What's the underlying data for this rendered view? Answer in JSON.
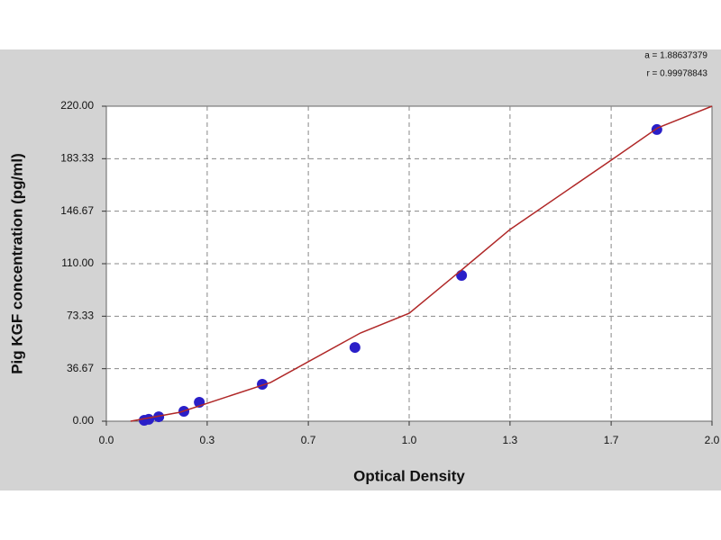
{
  "chart_data": {
    "type": "scatter",
    "x_label": "Optical Density",
    "y_label": "Pig KGF concentration (pg/ml)",
    "annotations": [
      "a = 1.88637379",
      "r = 0.99978843"
    ],
    "xlim": [
      0,
      2.0
    ],
    "xticks": [
      {
        "value": 0,
        "label": "0.0"
      },
      {
        "value": 0.333,
        "label": "0.3"
      },
      {
        "value": 0.667,
        "label": "0.7"
      },
      {
        "value": 1.0,
        "label": "1.0"
      },
      {
        "value": 1.333,
        "label": "1.3"
      },
      {
        "value": 1.667,
        "label": "1.7"
      },
      {
        "value": 2.0,
        "label": "2.0"
      }
    ],
    "ylim": [
      0,
      220
    ],
    "yticks": [
      {
        "value": 0,
        "label": "0.00"
      },
      36.67,
      73.33,
      {
        "value": 110,
        "label": "110.00"
      },
      146.67,
      183.33,
      {
        "value": 220,
        "label": "220.00"
      }
    ],
    "grid": true,
    "series": [
      {
        "mode": "markers",
        "color": "#2a1fc8",
        "x": [
          0.125,
          0.14,
          0.173,
          0.256,
          0.307,
          0.515,
          0.821,
          1.173,
          1.818
        ],
        "values": [
          0.6,
          1.3,
          3.1,
          6.9,
          13.2,
          25.8,
          51.5,
          101.8,
          203.7
        ]
      },
      {
        "mode": "line",
        "color": "#b02828",
        "x": [
          0.08,
          0.244,
          0.542,
          0.839,
          1.0,
          1.173,
          1.333,
          1.667,
          1.821,
          2.0
        ],
        "values": [
          0,
          6.3,
          27,
          61.6,
          75.4,
          105.6,
          133.9,
          182.3,
          204.9,
          220
        ]
      }
    ]
  }
}
